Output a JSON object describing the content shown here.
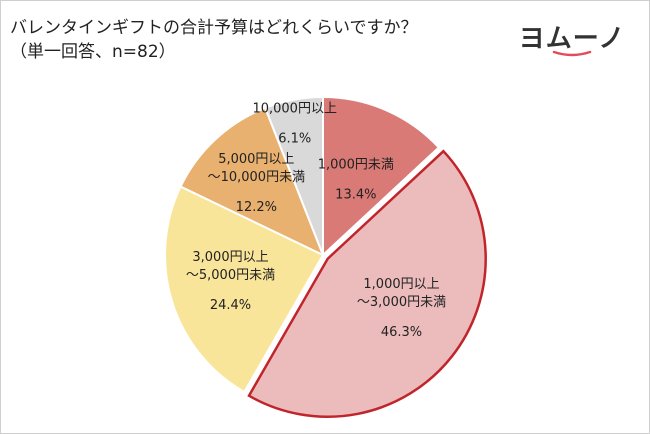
{
  "title": "バレンタインギフトの合計予算はどれくらいですか？",
  "subtitle": "（単一回答、n=82）",
  "logo": {
    "text": "ヨムーノ",
    "colors": {
      "text": "#333333",
      "accent": "#e24b5a"
    }
  },
  "chart_data": {
    "type": "pie",
    "start_angle_deg": 0,
    "direction": "clockwise",
    "slices": [
      {
        "label_lines": [
          "1,000円未満"
        ],
        "value": 13.4,
        "value_label": "13.4%",
        "color": "#d97a76",
        "highlight": false
      },
      {
        "label_lines": [
          "1,000円以上",
          "～3,000円未満"
        ],
        "value": 46.3,
        "value_label": "46.3%",
        "color": "#ecbcbd",
        "highlight": true,
        "highlight_color": "#c0252b"
      },
      {
        "label_lines": [
          "3,000円以上",
          "～5,000円未満"
        ],
        "value": 24.4,
        "value_label": "24.4%",
        "color": "#f9e59a",
        "highlight": false
      },
      {
        "label_lines": [
          "5,000円以上",
          "～10,000円未満"
        ],
        "value": 12.2,
        "value_label": "12.2%",
        "color": "#e9b16f",
        "highlight": false
      },
      {
        "label_lines": [
          "10,000円以上"
        ],
        "value": 6.1,
        "value_label": "6.1%",
        "color": "#d9d9d9",
        "highlight": false
      }
    ]
  }
}
